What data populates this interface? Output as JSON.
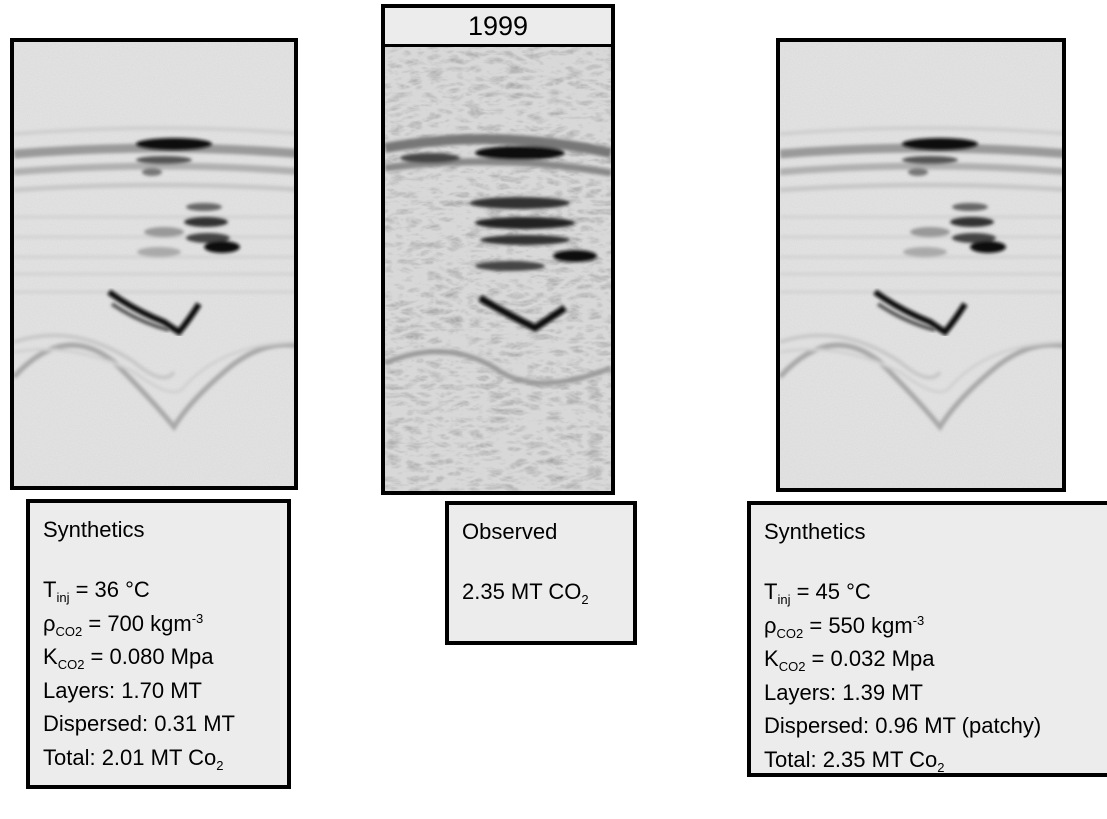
{
  "left_caption": {
    "title": "Synthetics",
    "lines": [
      [
        {
          "text": "T"
        },
        {
          "sub": "inj"
        },
        {
          "text": " = 36 °C"
        }
      ],
      [
        {
          "text": "ρ"
        },
        {
          "sub": "CO2"
        },
        {
          "text": " = 700 kgm"
        },
        {
          "sup": "-3"
        }
      ],
      [
        {
          "text": "K"
        },
        {
          "sub": "CO2"
        },
        {
          "text": " = 0.080 Mpa"
        }
      ],
      [
        {
          "text": "Layers: 1.70 MT"
        }
      ],
      [
        {
          "text": "Dispersed: 0.31 MT"
        }
      ],
      [
        {
          "text": "Total: 2.01 MT Co"
        },
        {
          "sub": "2"
        }
      ]
    ]
  },
  "middle_header": "1999",
  "middle_caption": {
    "title": "Observed",
    "lines": [
      [
        {
          "text": "2.35 MT CO"
        },
        {
          "sub": "2"
        }
      ]
    ]
  },
  "right_caption": {
    "title": "Synthetics",
    "lines": [
      [
        {
          "text": "T"
        },
        {
          "sub": "inj"
        },
        {
          "text": " = 45 °C"
        }
      ],
      [
        {
          "text": "ρ"
        },
        {
          "sub": "CO2"
        },
        {
          "text": " = 550 kgm"
        },
        {
          "sup": "-3"
        }
      ],
      [
        {
          "text": "K"
        },
        {
          "sub": "CO2"
        },
        {
          "text": " = 0.032 Mpa"
        }
      ],
      [
        {
          "text": "Layers: 1.39 MT"
        }
      ],
      [
        {
          "text": "Dispersed: 0.96 MT (patchy)"
        }
      ],
      [
        {
          "text": "Total: 2.35 MT Co"
        },
        {
          "sub": "2"
        }
      ]
    ]
  }
}
